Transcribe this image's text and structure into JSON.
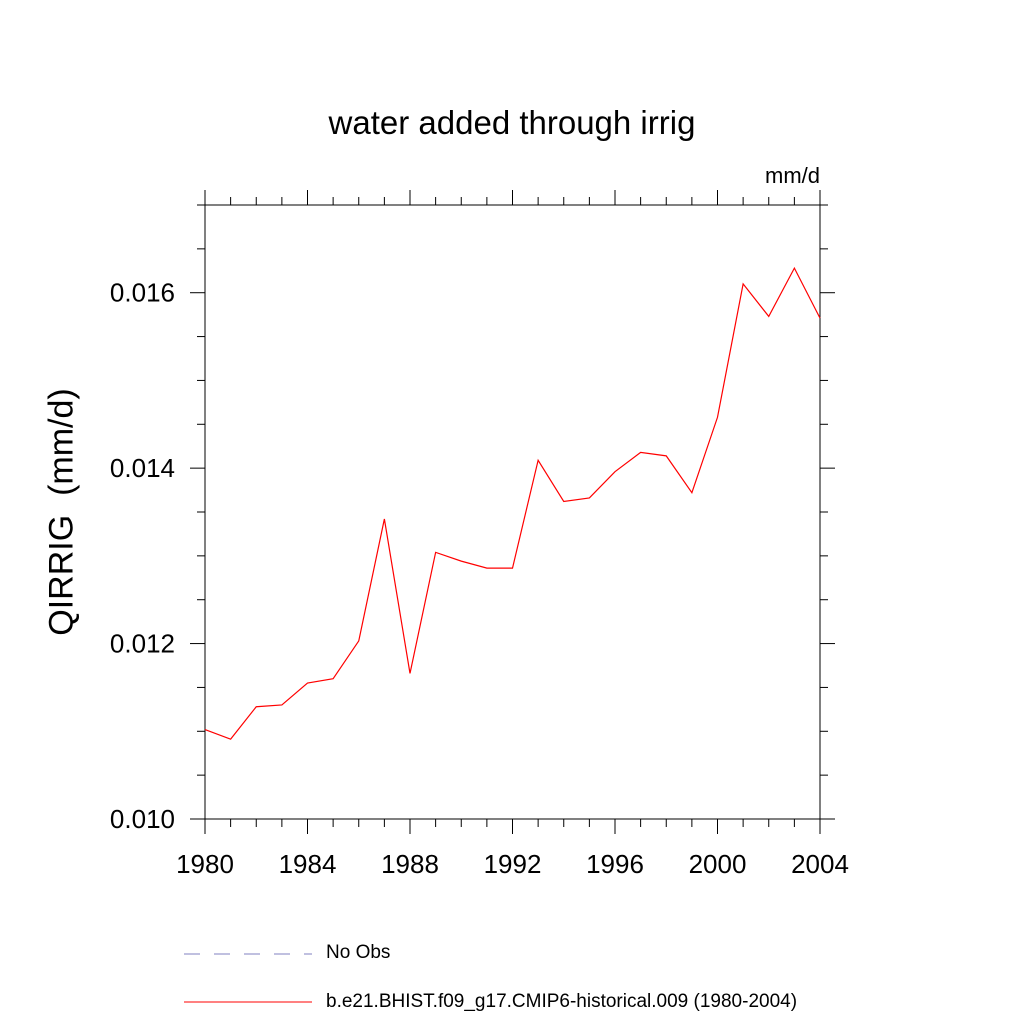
{
  "chart_data": {
    "type": "line",
    "title": "water added through irrig",
    "units_label": "mm/d",
    "ylabel": "QIRRIG  (mm/d)",
    "xlabel": "",
    "xlim": [
      1980,
      2004
    ],
    "ylim": [
      0.01,
      0.017
    ],
    "x_ticks": [
      "1980",
      "1984",
      "1988",
      "1992",
      "1996",
      "2000",
      "2004"
    ],
    "y_ticks": [
      "0.010",
      "0.012",
      "0.014",
      "0.016"
    ],
    "series": [
      {
        "name": "b.e21.BHIST.f09_g17.CMIP6-historical.009 (1980-2004)",
        "color": "#ff0000",
        "x": [
          1980,
          1981,
          1982,
          1983,
          1984,
          1985,
          1986,
          1987,
          1988,
          1989,
          1990,
          1991,
          1992,
          1993,
          1994,
          1995,
          1996,
          1997,
          1998,
          1999,
          2000,
          2001,
          2002,
          2003,
          2004
        ],
        "values": [
          0.01102,
          0.01091,
          0.01128,
          0.0113,
          0.01155,
          0.0116,
          0.01203,
          0.01342,
          0.01166,
          0.01304,
          0.01294,
          0.01286,
          0.01286,
          0.01409,
          0.01362,
          0.01366,
          0.01396,
          0.01418,
          0.01414,
          0.01372,
          0.01458,
          0.0161,
          0.01573,
          0.01628,
          0.01571
        ]
      }
    ],
    "legend": [
      {
        "label": "No Obs",
        "style": "dashed",
        "color": "#8080c0"
      },
      {
        "label": "b.e21.BHIST.f09_g17.CMIP6-historical.009 (1980-2004)",
        "style": "solid",
        "color": "#ff0000"
      }
    ]
  }
}
